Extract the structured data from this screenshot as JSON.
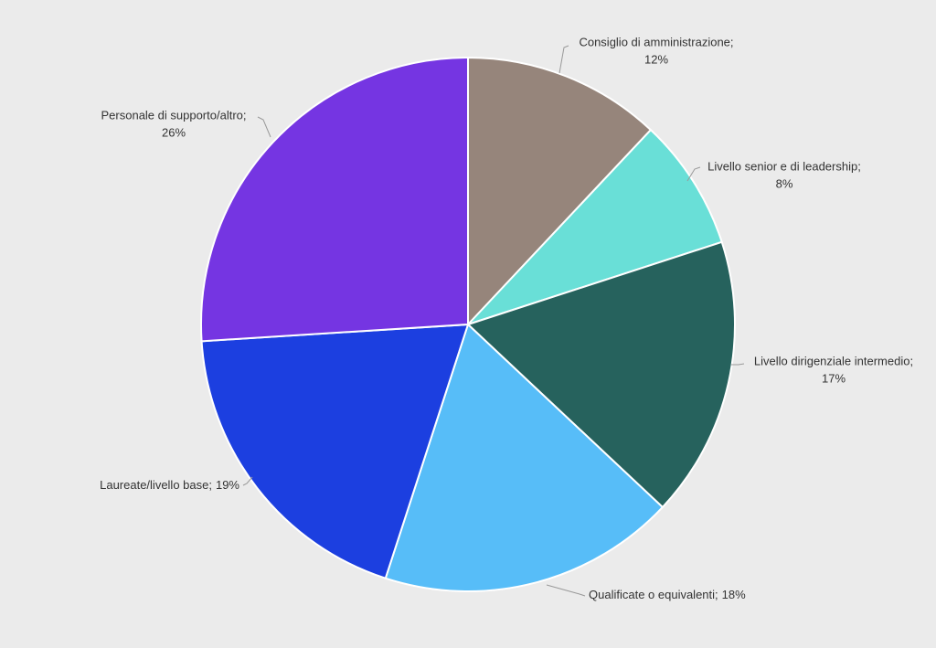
{
  "chart_data": {
    "type": "pie",
    "categories": [
      "Consiglio di amministrazione;",
      "Livello senior e di leadership;",
      "Livello dirigenziale intermedio;",
      "Qualificate o equivalenti;",
      "Laureate/livello base;",
      "Personale di supporto/altro;"
    ],
    "values": [
      12,
      8,
      17,
      18,
      19,
      26
    ],
    "value_labels": [
      "12%",
      "8%",
      "17%",
      "18%",
      "19%",
      "26%"
    ],
    "colors": [
      "#96857b",
      "#69dfd7",
      "#26625d",
      "#57bdf8",
      "#1c3fe0",
      "#7535e2"
    ]
  }
}
